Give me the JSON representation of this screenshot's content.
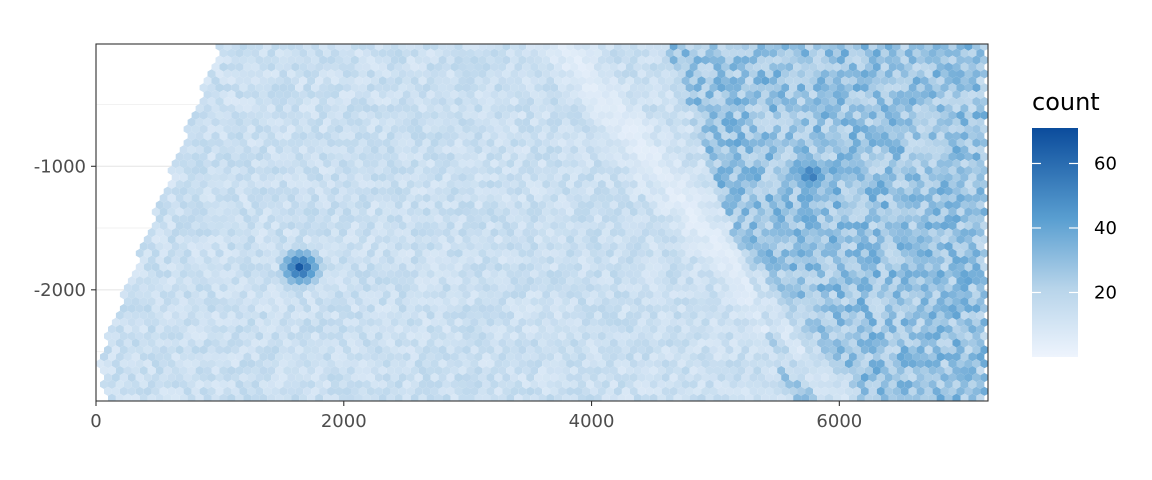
{
  "chart_data": {
    "type": "heatmap",
    "subtype": "hexbin",
    "title": "",
    "xlabel": "",
    "ylabel": "",
    "xlim": [
      0,
      7200
    ],
    "ylim": [
      -2900,
      -10
    ],
    "x_ticks": [
      0,
      2000,
      4000,
      6000
    ],
    "x_tick_labels": [
      "0",
      "2000",
      "4000",
      "6000"
    ],
    "y_ticks": [
      -1000,
      -2000
    ],
    "y_tick_labels": [
      "-1000",
      "-2000"
    ],
    "grid": true,
    "legend": {
      "title": "count",
      "placement": "right",
      "range": [
        0,
        71
      ],
      "ticks": [
        20,
        40,
        60
      ],
      "tick_labels": [
        "20",
        "40",
        "60"
      ],
      "color_low": "#eef4fd",
      "color_high": "#0b4c9c"
    },
    "region": {
      "description_polygon_data_units": [
        [
          1000,
          -10
        ],
        [
          7200,
          -10
        ],
        [
          7200,
          -2900
        ],
        [
          100,
          -2900
        ],
        [
          0,
          -2600
        ],
        [
          1000,
          -10
        ]
      ]
    },
    "features": [
      {
        "label": "hotspot",
        "x": 1650,
        "y": -1820,
        "count": 70
      },
      {
        "label": "hotspot",
        "x": 5770,
        "y": -1070,
        "count": 60
      },
      {
        "label": "sparse_diagonal",
        "from": [
          3750,
          -10
        ],
        "to": [
          6000,
          -2900
        ]
      }
    ],
    "regions": [
      {
        "area": "upper-right block",
        "x": [
          4000,
          7100
        ],
        "y": [
          -2900,
          -10
        ],
        "typical_count": 28
      },
      {
        "area": "left block",
        "x": [
          0,
          4000
        ],
        "y": [
          -2900,
          -10
        ],
        "typical_count": 14
      }
    ]
  }
}
